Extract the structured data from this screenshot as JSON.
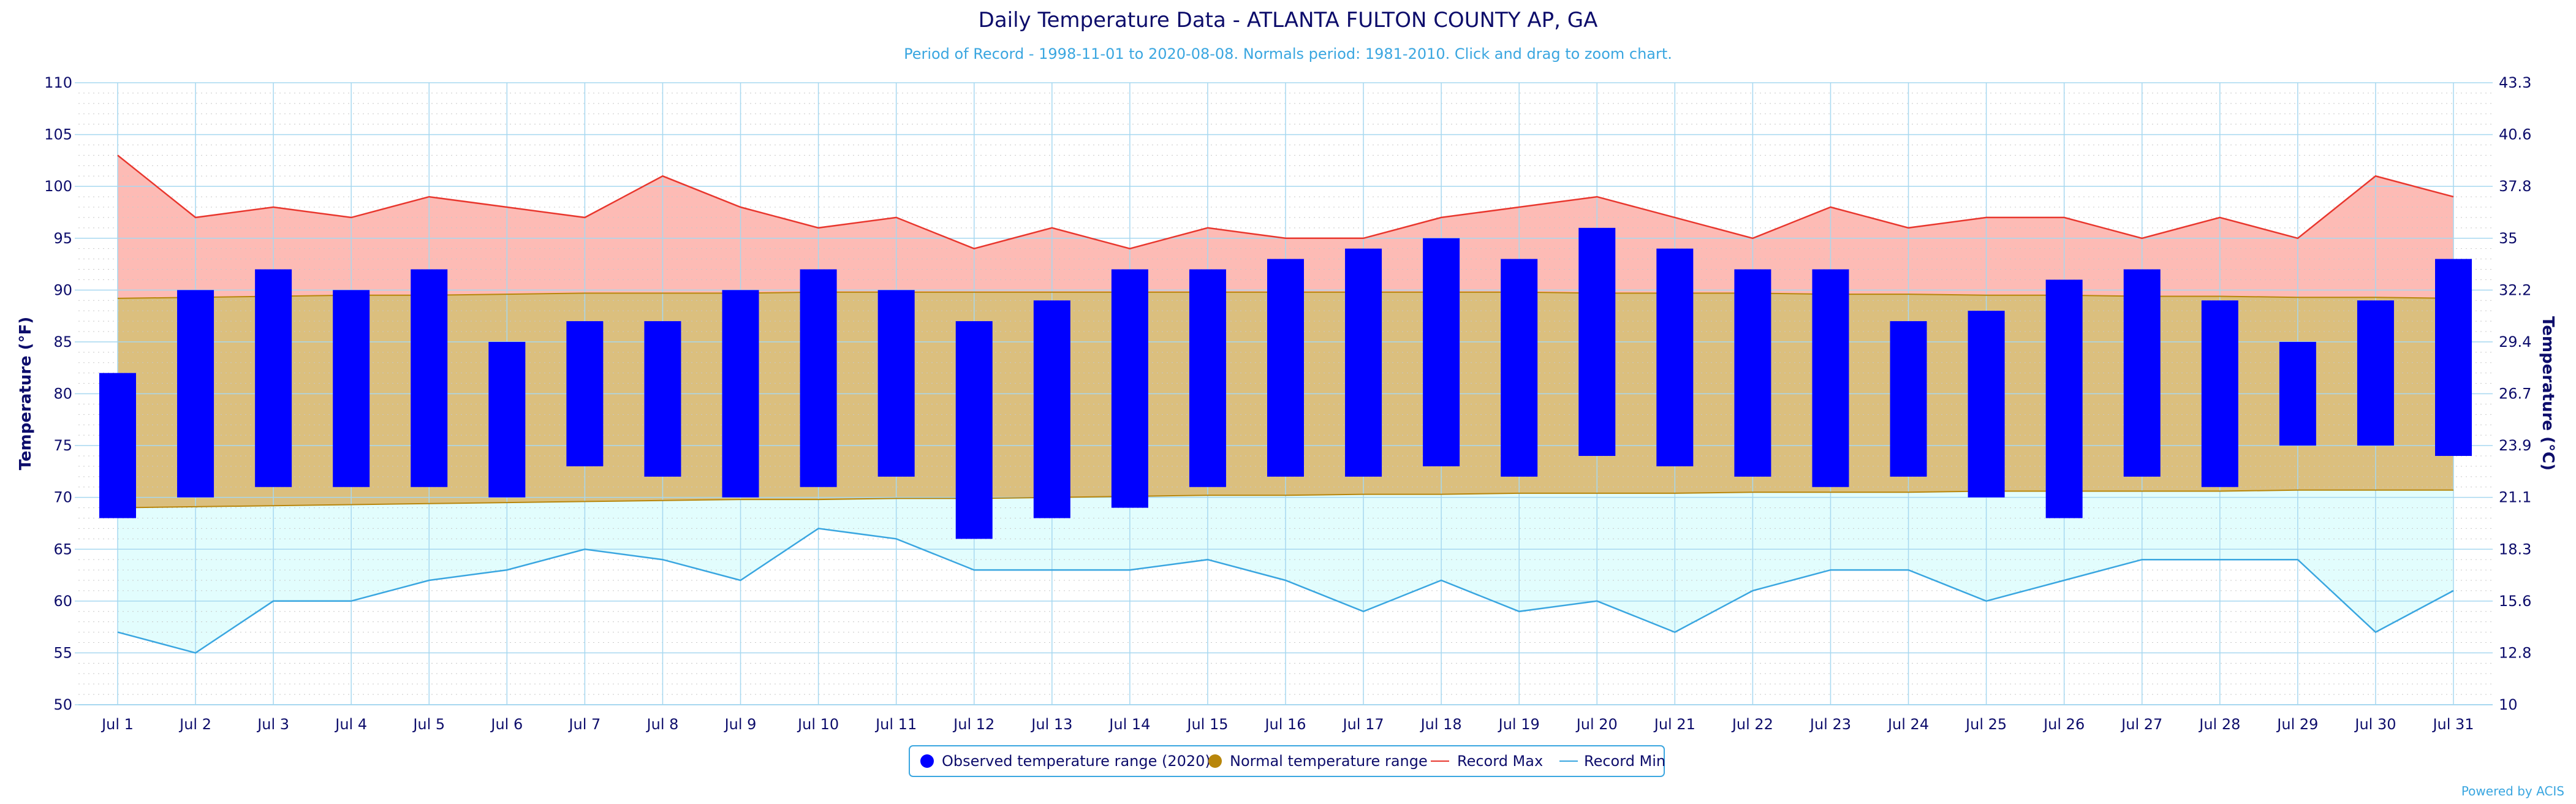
{
  "chart_data": {
    "type": "bar",
    "title": "Daily Temperature Data - ATLANTA FULTON COUNTY AP, GA",
    "subtitle": "Period of Record - 1998-11-01 to 2020-08-08. Normals period: 1981-2010. Click and drag to zoom chart.",
    "ylabel": "Temperature (°F)",
    "ylabel_right": "Temperature (°C)",
    "ylim": [
      50,
      110
    ],
    "y_ticks": [
      50,
      55,
      60,
      65,
      70,
      75,
      80,
      85,
      90,
      95,
      100,
      105,
      110
    ],
    "y2_ticks": [
      "10",
      "12.8",
      "15.6",
      "18.3",
      "21.1",
      "23.9",
      "26.7",
      "29.4",
      "32.2",
      "35",
      "37.8",
      "40.6",
      "43.3"
    ],
    "categories": [
      "Jul 1",
      "Jul 2",
      "Jul 3",
      "Jul 4",
      "Jul 5",
      "Jul 6",
      "Jul 7",
      "Jul 8",
      "Jul 9",
      "Jul 10",
      "Jul 11",
      "Jul 12",
      "Jul 13",
      "Jul 14",
      "Jul 15",
      "Jul 16",
      "Jul 17",
      "Jul 18",
      "Jul 19",
      "Jul 20",
      "Jul 21",
      "Jul 22",
      "Jul 23",
      "Jul 24",
      "Jul 25",
      "Jul 26",
      "Jul 27",
      "Jul 28",
      "Jul 29",
      "Jul 30",
      "Jul 31"
    ],
    "series": [
      {
        "name": "Observed temperature range (2020)",
        "type": "range_bar",
        "color": "#0000ff",
        "low": [
          68,
          70,
          71,
          71,
          71,
          70,
          73,
          72,
          70,
          71,
          72,
          66,
          68,
          69,
          71,
          72,
          72,
          73,
          72,
          74,
          73,
          72,
          71,
          72,
          70,
          68,
          72,
          71,
          75,
          75,
          74
        ],
        "high": [
          82,
          90,
          92,
          90,
          92,
          85,
          87,
          87,
          90,
          92,
          90,
          87,
          89,
          92,
          92,
          93,
          94,
          95,
          93,
          96,
          94,
          92,
          92,
          87,
          88,
          91,
          92,
          89,
          85,
          89,
          93
        ]
      },
      {
        "name": "Normal temperature range",
        "type": "range_area",
        "color": "#b8860b",
        "low": [
          69,
          69.1,
          69.2,
          69.3,
          69.4,
          69.5,
          69.6,
          69.7,
          69.8,
          69.8,
          69.9,
          69.9,
          70,
          70.1,
          70.2,
          70.2,
          70.3,
          70.3,
          70.4,
          70.4,
          70.4,
          70.5,
          70.5,
          70.5,
          70.6,
          70.6,
          70.6,
          70.6,
          70.7,
          70.7,
          70.7
        ],
        "high": [
          89.2,
          89.3,
          89.4,
          89.5,
          89.5,
          89.6,
          89.7,
          89.7,
          89.7,
          89.8,
          89.8,
          89.8,
          89.8,
          89.8,
          89.8,
          89.8,
          89.8,
          89.8,
          89.8,
          89.7,
          89.7,
          89.7,
          89.6,
          89.6,
          89.5,
          89.5,
          89.4,
          89.4,
          89.3,
          89.3,
          89.2
        ]
      },
      {
        "name": "Record Max",
        "type": "line",
        "color": "#e8372e",
        "values": [
          103,
          97,
          98,
          97,
          99,
          98,
          97,
          101,
          98,
          96,
          97,
          94,
          96,
          94,
          96,
          95,
          95,
          97,
          98,
          99,
          97,
          95,
          98,
          96,
          97,
          97,
          95,
          97,
          95,
          101,
          99
        ]
      },
      {
        "name": "Record Min",
        "type": "line",
        "color": "#3aa6e0",
        "values": [
          57,
          55,
          60,
          60,
          62,
          63,
          65,
          64,
          62,
          67,
          66,
          63,
          63,
          63,
          64,
          62,
          59,
          62,
          59,
          60,
          57,
          61,
          63,
          63,
          60,
          62,
          64,
          64,
          64,
          57,
          61
        ]
      }
    ],
    "grid": true,
    "legend": "bottom-center",
    "colors": {
      "record_max_fill": "#fdbbb5",
      "normal_fill": "#dbbf7e",
      "normal_line": "#b8860b",
      "record_min_fill": "#e2fdfd",
      "grid": "#a7d8f0",
      "text": "#0d0d6b"
    }
  },
  "credit": "Powered by ACIS"
}
